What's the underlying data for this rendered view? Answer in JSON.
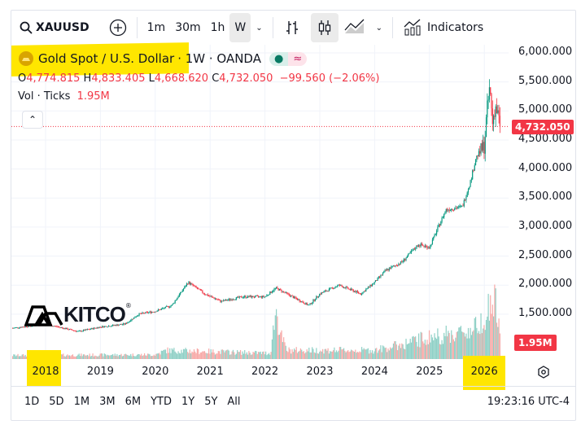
{
  "toolbar": {
    "symbol": "XAUUSD",
    "intervals": [
      "1m",
      "30m",
      "1h",
      "W"
    ],
    "active_interval": "W",
    "indicators_label": "Indicators"
  },
  "legend": {
    "name": "Gold Spot / U.S. Dollar",
    "meta": "· 1W · OANDA",
    "open_label": "O",
    "open": "4,774.815",
    "high_label": "H",
    "high": "4,833.405",
    "low_label": "L",
    "low": "4,668.620",
    "close_label": "C",
    "close": "4,732.050",
    "change": "−99.560 (−2.06%)",
    "vol_label": "Vol · Ticks",
    "vol_value": "1.95M"
  },
  "logo": "KITCO",
  "colors": {
    "up": "#089981",
    "down": "#f23645",
    "highlight": "#ffe600",
    "vol_up": "#8fd0c6",
    "vol_down": "#f7a9a7"
  },
  "chart_data": {
    "type": "candlestick",
    "y_axis_ticks": [
      "6,000.000",
      "5,500.000",
      "5,000.000",
      "4,500.000",
      "4,000.000",
      "3,500.000",
      "3,000.000",
      "2,500.000",
      "2,000.000",
      "1,500.000"
    ],
    "ylim": [
      1000,
      6000
    ],
    "x_axis_ticks": [
      "2018",
      "2019",
      "2020",
      "2021",
      "2022",
      "2023",
      "2024",
      "2025",
      "2026"
    ],
    "last_price_label": "4,732.050",
    "last_volume_label": "1.95M",
    "price_path": [
      [
        2017.4,
        1260
      ],
      [
        2018.0,
        1330
      ],
      [
        2018.6,
        1200
      ],
      [
        2019.0,
        1280
      ],
      [
        2019.45,
        1330
      ],
      [
        2019.7,
        1500
      ],
      [
        2020.0,
        1550
      ],
      [
        2020.3,
        1650
      ],
      [
        2020.6,
        2050
      ],
      [
        2020.9,
        1850
      ],
      [
        2021.2,
        1720
      ],
      [
        2021.6,
        1800
      ],
      [
        2022.0,
        1800
      ],
      [
        2022.2,
        1950
      ],
      [
        2022.8,
        1650
      ],
      [
        2023.0,
        1850
      ],
      [
        2023.35,
        2000
      ],
      [
        2023.75,
        1850
      ],
      [
        2024.0,
        2050
      ],
      [
        2024.2,
        2250
      ],
      [
        2024.5,
        2400
      ],
      [
        2024.8,
        2700
      ],
      [
        2025.0,
        2650
      ],
      [
        2025.3,
        3300
      ],
      [
        2025.6,
        3350
      ],
      [
        2025.75,
        3800
      ],
      [
        2025.85,
        4200
      ],
      [
        2026.0,
        4400
      ],
      [
        2026.05,
        5000
      ],
      [
        2026.1,
        5400
      ],
      [
        2026.15,
        4800
      ],
      [
        2026.2,
        5100
      ],
      [
        2026.3,
        4732
      ]
    ],
    "volume_path_millions": [
      [
        2017.4,
        0.5
      ],
      [
        2020.0,
        0.6
      ],
      [
        2020.2,
        1.2
      ],
      [
        2022.1,
        0.8
      ],
      [
        2022.2,
        6.8
      ],
      [
        2022.3,
        3
      ],
      [
        2022.4,
        1.2
      ],
      [
        2024.0,
        1.2
      ],
      [
        2024.5,
        2
      ],
      [
        2025.0,
        3
      ],
      [
        2025.5,
        3.5
      ],
      [
        2025.8,
        4
      ],
      [
        2026.0,
        6
      ],
      [
        2026.2,
        8
      ],
      [
        2026.3,
        1.95
      ]
    ]
  },
  "range_buttons": [
    "1D",
    "5D",
    "1M",
    "3M",
    "6M",
    "YTD",
    "1Y",
    "5Y",
    "All"
  ],
  "clock": "19:23:16 UTC-4"
}
